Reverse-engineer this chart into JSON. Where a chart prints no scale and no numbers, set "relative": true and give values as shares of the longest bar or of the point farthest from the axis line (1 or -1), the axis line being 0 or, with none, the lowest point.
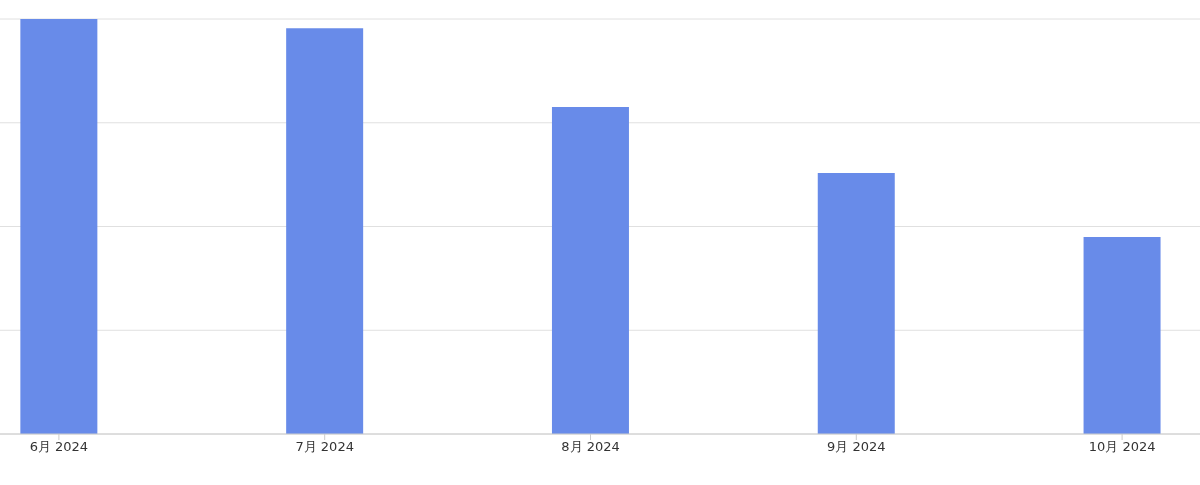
{
  "chart_data": {
    "type": "bar",
    "relative": true,
    "categories": [
      "6月 2024",
      "7月 2024",
      "8月 2024",
      "9月 2024",
      "10月 2024"
    ],
    "values": [
      1,
      0.978,
      0.788,
      0.629,
      0.475
    ],
    "color": "#688be9",
    "grid": "y"
  }
}
